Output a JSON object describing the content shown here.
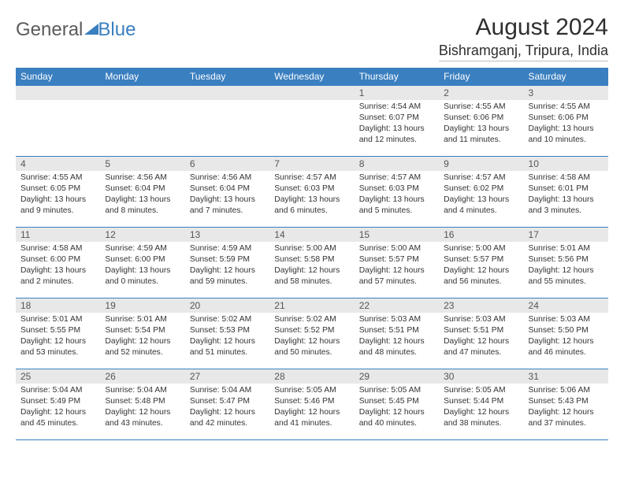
{
  "logo": {
    "part1": "General",
    "part2": "Blue"
  },
  "title": "August 2024",
  "subtitle": "Bishramganj, Tripura, India",
  "colors": {
    "accent": "#3a7fc0",
    "daynum_bg": "#e8e8e8",
    "text": "#333333",
    "bg": "#ffffff"
  },
  "weekdays": [
    "Sunday",
    "Monday",
    "Tuesday",
    "Wednesday",
    "Thursday",
    "Friday",
    "Saturday"
  ],
  "weeks": [
    [
      null,
      null,
      null,
      null,
      {
        "n": "1",
        "sr": "4:54 AM",
        "ss": "6:07 PM",
        "dl": "13 hours and 12 minutes."
      },
      {
        "n": "2",
        "sr": "4:55 AM",
        "ss": "6:06 PM",
        "dl": "13 hours and 11 minutes."
      },
      {
        "n": "3",
        "sr": "4:55 AM",
        "ss": "6:06 PM",
        "dl": "13 hours and 10 minutes."
      }
    ],
    [
      {
        "n": "4",
        "sr": "4:55 AM",
        "ss": "6:05 PM",
        "dl": "13 hours and 9 minutes."
      },
      {
        "n": "5",
        "sr": "4:56 AM",
        "ss": "6:04 PM",
        "dl": "13 hours and 8 minutes."
      },
      {
        "n": "6",
        "sr": "4:56 AM",
        "ss": "6:04 PM",
        "dl": "13 hours and 7 minutes."
      },
      {
        "n": "7",
        "sr": "4:57 AM",
        "ss": "6:03 PM",
        "dl": "13 hours and 6 minutes."
      },
      {
        "n": "8",
        "sr": "4:57 AM",
        "ss": "6:03 PM",
        "dl": "13 hours and 5 minutes."
      },
      {
        "n": "9",
        "sr": "4:57 AM",
        "ss": "6:02 PM",
        "dl": "13 hours and 4 minutes."
      },
      {
        "n": "10",
        "sr": "4:58 AM",
        "ss": "6:01 PM",
        "dl": "13 hours and 3 minutes."
      }
    ],
    [
      {
        "n": "11",
        "sr": "4:58 AM",
        "ss": "6:00 PM",
        "dl": "13 hours and 2 minutes."
      },
      {
        "n": "12",
        "sr": "4:59 AM",
        "ss": "6:00 PM",
        "dl": "13 hours and 0 minutes."
      },
      {
        "n": "13",
        "sr": "4:59 AM",
        "ss": "5:59 PM",
        "dl": "12 hours and 59 minutes."
      },
      {
        "n": "14",
        "sr": "5:00 AM",
        "ss": "5:58 PM",
        "dl": "12 hours and 58 minutes."
      },
      {
        "n": "15",
        "sr": "5:00 AM",
        "ss": "5:57 PM",
        "dl": "12 hours and 57 minutes."
      },
      {
        "n": "16",
        "sr": "5:00 AM",
        "ss": "5:57 PM",
        "dl": "12 hours and 56 minutes."
      },
      {
        "n": "17",
        "sr": "5:01 AM",
        "ss": "5:56 PM",
        "dl": "12 hours and 55 minutes."
      }
    ],
    [
      {
        "n": "18",
        "sr": "5:01 AM",
        "ss": "5:55 PM",
        "dl": "12 hours and 53 minutes."
      },
      {
        "n": "19",
        "sr": "5:01 AM",
        "ss": "5:54 PM",
        "dl": "12 hours and 52 minutes."
      },
      {
        "n": "20",
        "sr": "5:02 AM",
        "ss": "5:53 PM",
        "dl": "12 hours and 51 minutes."
      },
      {
        "n": "21",
        "sr": "5:02 AM",
        "ss": "5:52 PM",
        "dl": "12 hours and 50 minutes."
      },
      {
        "n": "22",
        "sr": "5:03 AM",
        "ss": "5:51 PM",
        "dl": "12 hours and 48 minutes."
      },
      {
        "n": "23",
        "sr": "5:03 AM",
        "ss": "5:51 PM",
        "dl": "12 hours and 47 minutes."
      },
      {
        "n": "24",
        "sr": "5:03 AM",
        "ss": "5:50 PM",
        "dl": "12 hours and 46 minutes."
      }
    ],
    [
      {
        "n": "25",
        "sr": "5:04 AM",
        "ss": "5:49 PM",
        "dl": "12 hours and 45 minutes."
      },
      {
        "n": "26",
        "sr": "5:04 AM",
        "ss": "5:48 PM",
        "dl": "12 hours and 43 minutes."
      },
      {
        "n": "27",
        "sr": "5:04 AM",
        "ss": "5:47 PM",
        "dl": "12 hours and 42 minutes."
      },
      {
        "n": "28",
        "sr": "5:05 AM",
        "ss": "5:46 PM",
        "dl": "12 hours and 41 minutes."
      },
      {
        "n": "29",
        "sr": "5:05 AM",
        "ss": "5:45 PM",
        "dl": "12 hours and 40 minutes."
      },
      {
        "n": "30",
        "sr": "5:05 AM",
        "ss": "5:44 PM",
        "dl": "12 hours and 38 minutes."
      },
      {
        "n": "31",
        "sr": "5:06 AM",
        "ss": "5:43 PM",
        "dl": "12 hours and 37 minutes."
      }
    ]
  ],
  "labels": {
    "sunrise": "Sunrise:",
    "sunset": "Sunset:",
    "daylight": "Daylight:"
  }
}
